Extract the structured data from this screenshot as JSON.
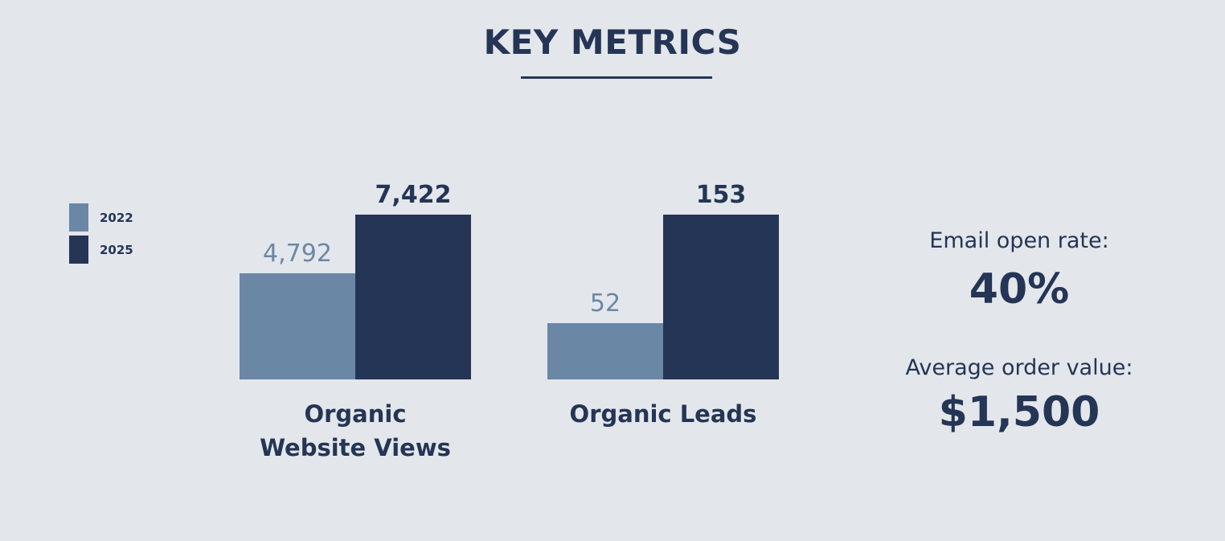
{
  "title": "KEY METRICS",
  "chart_data": {
    "type": "bar",
    "categories": [
      "Organic Website Views",
      "Organic Leads"
    ],
    "series": [
      {
        "name": "2022",
        "color": "#6b87a6",
        "values": [
          4792,
          52
        ],
        "value_labels": [
          "4,792",
          "52"
        ]
      },
      {
        "name": "2025",
        "color": "#243555",
        "values": [
          7422,
          153
        ],
        "value_labels": [
          "7,422",
          "153"
        ]
      }
    ]
  },
  "kpis": [
    {
      "label": "Email open rate:",
      "value": "40%"
    },
    {
      "label": "Average order value:",
      "value": "$1,500"
    }
  ]
}
